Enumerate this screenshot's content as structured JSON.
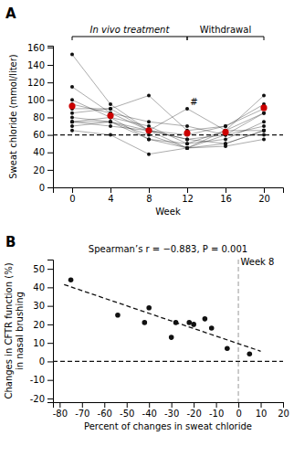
{
  "chart_data": [
    {
      "type": "line",
      "panel_label": "A",
      "x": [
        0,
        4,
        8,
        12,
        16,
        20
      ],
      "xlabel": "Week",
      "ylabel": "Sweat chloride (mmol/liter)",
      "xlim": [
        -2,
        22
      ],
      "ylim": [
        0,
        162
      ],
      "xticks": [
        0,
        4,
        8,
        12,
        16,
        20
      ],
      "yticks": [
        0,
        20,
        40,
        60,
        80,
        100,
        120,
        140,
        160
      ],
      "grid": false,
      "series": [
        {
          "type": "line",
          "color": "#111111",
          "marker": "circle",
          "line_style": "solid",
          "values": [
            95,
            85,
            65,
            90,
            65,
            85
          ]
        },
        {
          "type": "line",
          "color": "#111111",
          "marker": "circle",
          "line_style": "solid",
          "values": [
            75,
            80,
            70,
            50,
            55,
            75
          ]
        },
        {
          "type": "line",
          "color": "#111111",
          "marker": "circle",
          "line_style": "solid",
          "values": [
            80,
            75,
            60,
            45,
            60,
            70
          ]
        },
        {
          "type": "line",
          "color": "#111111",
          "marker": "circle",
          "line_style": "solid",
          "values": [
            70,
            75,
            55,
            50,
            65,
            65
          ]
        },
        {
          "type": "line",
          "color": "#111111",
          "marker": "circle",
          "line_style": "solid",
          "values": [
            85,
            90,
            105,
            65,
            70,
            90
          ]
        },
        {
          "type": "line",
          "color": "#111111",
          "marker": "circle",
          "line_style": "solid",
          "values": [
            75,
            70,
            65,
            55,
            60,
            85
          ]
        },
        {
          "type": "line",
          "color": "#111111",
          "marker": "circle",
          "line_style": "solid",
          "values": [
            115,
            85,
            75,
            70,
            60,
            60
          ]
        },
        {
          "type": "line",
          "color": "#111111",
          "marker": "circle",
          "line_style": "solid",
          "values": [
            152,
            95,
            65,
            55,
            50,
            65
          ]
        },
        {
          "type": "line",
          "color": "#111111",
          "marker": "circle",
          "line_style": "solid",
          "values": [
            100,
            80,
            55,
            45,
            50,
            65
          ]
        },
        {
          "type": "line",
          "color": "#111111",
          "marker": "circle",
          "line_style": "solid",
          "values": [
            65,
            60,
            38,
            45,
            47,
            55
          ]
        },
        {
          "type": "line",
          "color": "#111111",
          "marker": "circle",
          "line_style": "solid",
          "values": [
            75,
            75,
            65,
            45,
            65,
            105
          ]
        },
        {
          "type": "line",
          "color": "#111111",
          "marker": "circle",
          "line_style": "solid",
          "values": [
            90,
            90,
            65,
            60,
            70,
            95
          ]
        },
        {
          "type": "scatter",
          "color": "#cc0000",
          "marker": "circle",
          "line_style": "none",
          "values": [
            93,
            82,
            65,
            62,
            63,
            91
          ]
        }
      ],
      "reference_lines": [
        {
          "axis": "y",
          "value": 60,
          "line_style": "dashed",
          "color": "#111111"
        }
      ],
      "annotations": [
        {
          "text": "#",
          "x": 12.3,
          "y": 94
        }
      ],
      "brackets": [
        {
          "text": "In vivo treatment",
          "x": [
            0,
            12
          ]
        },
        {
          "text": "Withdrawal",
          "x": [
            12,
            20
          ]
        }
      ]
    },
    {
      "type": "scatter",
      "panel_label": "B",
      "title": "Spearman’s r = −0.883, P = 0.001",
      "x": [
        -75,
        -54,
        -42,
        -40,
        -30,
        -28,
        -22,
        -20,
        -15,
        -12,
        -5,
        5
      ],
      "values": [
        44,
        25,
        21,
        29,
        13,
        21,
        21,
        20,
        23,
        18,
        7,
        4
      ],
      "color": "#111111",
      "marker": "circle",
      "xlabel": "Percent of changes in sweat chloride",
      "ylabel": "Changes in CFTR function (%)\nin nasal brushing",
      "xlim": [
        -83,
        20
      ],
      "ylim": [
        -22,
        55
      ],
      "xticks": [
        -80,
        -70,
        -60,
        -50,
        -40,
        -30,
        -20,
        -10,
        0,
        10,
        20
      ],
      "yticks": [
        -20,
        -10,
        0,
        10,
        20,
        30,
        40,
        50
      ],
      "grid": false,
      "fit": {
        "x": [
          -78,
          10
        ],
        "values": [
          41.5,
          5.5
        ],
        "line_style": "dashed",
        "color": "#111111"
      },
      "reference_lines": [
        {
          "axis": "y",
          "value": 0,
          "line_style": "dashed",
          "color": "#111111"
        },
        {
          "axis": "x",
          "value": 0,
          "line_style": "dashed",
          "color": "#aaaaaa"
        }
      ],
      "annotations": [
        {
          "text": "Week 8",
          "x": 1,
          "y": 52
        }
      ]
    }
  ]
}
